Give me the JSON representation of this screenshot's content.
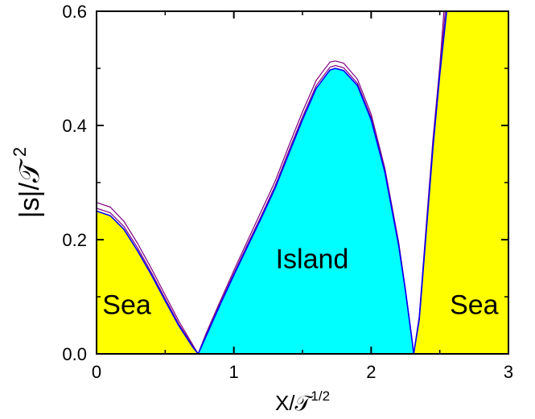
{
  "chart_data": {
    "type": "area",
    "xlabel": "X/𝒯",
    "xlabel_sup": "1/2",
    "ylabel": "|s|/𝒯",
    "ylabel_sup": "2",
    "xlim": [
      0,
      3
    ],
    "ylim": [
      0,
      0.6
    ],
    "x_ticks": [
      "0",
      "1",
      "2",
      "3"
    ],
    "y_ticks": [
      "0.0",
      "0.2",
      "0.4",
      "0.6"
    ],
    "grid": false,
    "regions": [
      {
        "label": "Sea",
        "color": "#ffff00",
        "label_x": 0.22,
        "label_y": 0.07
      },
      {
        "label": "Island",
        "color": "#00ffff",
        "label_x": 1.57,
        "label_y": 0.15
      },
      {
        "label": "Sea",
        "color": "#ffff00",
        "label_x": 2.75,
        "label_y": 0.07
      }
    ],
    "boundary_zeros": [
      0.74,
      2.31
    ],
    "boundary_peak": {
      "x": 1.74,
      "y": 0.5
    },
    "series": [
      {
        "color": "#0000ff",
        "width": 1.6,
        "points": [
          [
            0.0,
            0.25
          ],
          [
            0.1,
            0.242
          ],
          [
            0.2,
            0.218
          ],
          [
            0.3,
            0.18
          ],
          [
            0.4,
            0.138
          ],
          [
            0.5,
            0.093
          ],
          [
            0.6,
            0.049
          ],
          [
            0.7,
            0.012
          ],
          [
            0.74,
            0.0
          ],
          [
            0.8,
            0.032
          ],
          [
            0.9,
            0.086
          ],
          [
            1.0,
            0.138
          ],
          [
            1.1,
            0.188
          ],
          [
            1.2,
            0.238
          ],
          [
            1.3,
            0.29
          ],
          [
            1.4,
            0.35
          ],
          [
            1.5,
            0.41
          ],
          [
            1.6,
            0.465
          ],
          [
            1.7,
            0.497
          ],
          [
            1.74,
            0.5
          ],
          [
            1.8,
            0.496
          ],
          [
            1.9,
            0.47
          ],
          [
            2.0,
            0.41
          ],
          [
            2.1,
            0.318
          ],
          [
            2.2,
            0.19
          ],
          [
            2.25,
            0.11
          ],
          [
            2.3,
            0.02
          ],
          [
            2.31,
            0.0
          ],
          [
            2.35,
            0.06
          ],
          [
            2.4,
            0.21
          ],
          [
            2.45,
            0.36
          ],
          [
            2.5,
            0.49
          ],
          [
            2.55,
            0.6
          ]
        ]
      },
      {
        "color": "#800080",
        "width": 1.2,
        "points": [
          [
            0.0,
            0.255
          ],
          [
            0.1,
            0.247
          ],
          [
            0.2,
            0.223
          ],
          [
            0.3,
            0.185
          ],
          [
            0.4,
            0.142
          ],
          [
            0.5,
            0.097
          ],
          [
            0.6,
            0.052
          ],
          [
            0.7,
            0.014
          ],
          [
            0.74,
            0.0
          ],
          [
            0.8,
            0.034
          ],
          [
            0.9,
            0.088
          ],
          [
            1.0,
            0.141
          ],
          [
            1.1,
            0.192
          ],
          [
            1.2,
            0.242
          ],
          [
            1.3,
            0.294
          ],
          [
            1.4,
            0.355
          ],
          [
            1.5,
            0.415
          ],
          [
            1.6,
            0.47
          ],
          [
            1.7,
            0.502
          ],
          [
            1.74,
            0.505
          ],
          [
            1.8,
            0.501
          ],
          [
            1.9,
            0.474
          ],
          [
            2.0,
            0.414
          ],
          [
            2.1,
            0.32
          ],
          [
            2.2,
            0.192
          ],
          [
            2.25,
            0.111
          ],
          [
            2.3,
            0.021
          ],
          [
            2.31,
            0.0
          ],
          [
            2.35,
            0.062
          ],
          [
            2.4,
            0.215
          ],
          [
            2.45,
            0.365
          ],
          [
            2.5,
            0.495
          ],
          [
            2.54,
            0.6
          ]
        ]
      },
      {
        "color": "#800080",
        "width": 1.2,
        "points": [
          [
            0.0,
            0.265
          ],
          [
            0.1,
            0.257
          ],
          [
            0.2,
            0.232
          ],
          [
            0.3,
            0.193
          ],
          [
            0.4,
            0.149
          ],
          [
            0.5,
            0.103
          ],
          [
            0.6,
            0.057
          ],
          [
            0.7,
            0.016
          ],
          [
            0.74,
            0.0
          ],
          [
            0.8,
            0.037
          ],
          [
            0.9,
            0.092
          ],
          [
            1.0,
            0.146
          ],
          [
            1.1,
            0.198
          ],
          [
            1.2,
            0.25
          ],
          [
            1.3,
            0.302
          ],
          [
            1.4,
            0.364
          ],
          [
            1.5,
            0.424
          ],
          [
            1.6,
            0.479
          ],
          [
            1.7,
            0.511
          ],
          [
            1.74,
            0.513
          ],
          [
            1.8,
            0.509
          ],
          [
            1.9,
            0.481
          ],
          [
            2.0,
            0.42
          ],
          [
            2.1,
            0.325
          ],
          [
            2.2,
            0.196
          ],
          [
            2.25,
            0.113
          ],
          [
            2.3,
            0.022
          ],
          [
            2.31,
            0.0
          ],
          [
            2.35,
            0.066
          ],
          [
            2.4,
            0.222
          ],
          [
            2.45,
            0.375
          ],
          [
            2.5,
            0.505
          ],
          [
            2.53,
            0.6
          ]
        ]
      }
    ]
  }
}
